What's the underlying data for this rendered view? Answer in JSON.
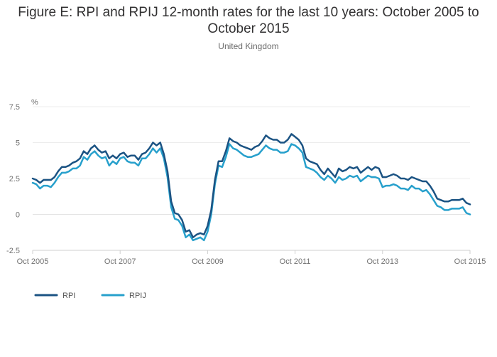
{
  "chart_data": {
    "type": "line",
    "title": "Figure E: RPI and RPIJ 12-month rates for the last 10 years: October 2005 to October 2015",
    "subtitle": "United Kingdom",
    "ylabel": "%",
    "xlabel": "",
    "ylim": [
      -2.5,
      7.5
    ],
    "yticks": [
      {
        "value": 7.5,
        "label": "7.5"
      },
      {
        "value": 5,
        "label": "5"
      },
      {
        "value": 2.5,
        "label": "2.5"
      },
      {
        "value": 0,
        "label": "0"
      },
      {
        "value": -2.5,
        "label": "-2.5"
      }
    ],
    "xticks": [
      {
        "index": 0,
        "label": "Oct 2005"
      },
      {
        "index": 24,
        "label": "Oct 2007"
      },
      {
        "index": 48,
        "label": "Oct 2009"
      },
      {
        "index": 72,
        "label": "Oct 2011"
      },
      {
        "index": 96,
        "label": "Oct 2013"
      },
      {
        "index": 120,
        "label": "Oct 2015"
      }
    ],
    "x_start": "Oct 2005",
    "x_end": "Oct 2015",
    "x_step": "month",
    "grid": true,
    "legend_position": "bottom-left",
    "series": [
      {
        "name": "RPI",
        "color": "#1b5383",
        "values": [
          2.5,
          2.4,
          2.2,
          2.4,
          2.4,
          2.4,
          2.6,
          3.0,
          3.3,
          3.3,
          3.4,
          3.6,
          3.7,
          3.9,
          4.4,
          4.2,
          4.6,
          4.8,
          4.5,
          4.3,
          4.4,
          3.9,
          4.1,
          3.9,
          4.2,
          4.3,
          4.0,
          4.1,
          4.1,
          3.8,
          4.2,
          4.3,
          4.6,
          5.0,
          4.8,
          5.0,
          4.2,
          3.0,
          0.9,
          0.1,
          0.0,
          -0.4,
          -1.2,
          -1.1,
          -1.6,
          -1.4,
          -1.3,
          -1.4,
          -0.8,
          0.3,
          2.4,
          3.7,
          3.7,
          4.4,
          5.3,
          5.1,
          5.0,
          4.8,
          4.7,
          4.6,
          4.5,
          4.7,
          4.8,
          5.1,
          5.5,
          5.3,
          5.2,
          5.2,
          5.0,
          5.0,
          5.2,
          5.6,
          5.4,
          5.2,
          4.8,
          3.9,
          3.7,
          3.6,
          3.5,
          3.1,
          2.8,
          3.2,
          2.9,
          2.6,
          3.2,
          3.0,
          3.1,
          3.3,
          3.2,
          3.3,
          2.9,
          3.1,
          3.3,
          3.1,
          3.3,
          3.2,
          2.6,
          2.6,
          2.7,
          2.8,
          2.7,
          2.5,
          2.5,
          2.4,
          2.6,
          2.5,
          2.4,
          2.3,
          2.3,
          2.0,
          1.6,
          1.1,
          1.0,
          0.9,
          0.9,
          1.0,
          1.0,
          1.0,
          1.1,
          0.8,
          0.7
        ]
      },
      {
        "name": "RPIJ",
        "color": "#27a0cc",
        "values": [
          2.2,
          2.1,
          1.8,
          2.0,
          2.0,
          1.9,
          2.2,
          2.6,
          2.9,
          2.9,
          3.0,
          3.2,
          3.2,
          3.4,
          4.0,
          3.8,
          4.2,
          4.4,
          4.1,
          3.9,
          4.0,
          3.4,
          3.7,
          3.5,
          3.9,
          4.0,
          3.7,
          3.6,
          3.6,
          3.4,
          3.9,
          3.9,
          4.2,
          4.6,
          4.3,
          4.6,
          3.9,
          2.6,
          0.5,
          -0.3,
          -0.4,
          -0.8,
          -1.6,
          -1.4,
          -1.8,
          -1.7,
          -1.6,
          -1.8,
          -1.2,
          0.0,
          2.1,
          3.4,
          3.3,
          4.0,
          4.9,
          4.6,
          4.5,
          4.3,
          4.1,
          4.0,
          4.0,
          4.1,
          4.2,
          4.5,
          4.8,
          4.6,
          4.5,
          4.5,
          4.3,
          4.3,
          4.4,
          4.9,
          4.8,
          4.6,
          4.3,
          3.3,
          3.2,
          3.1,
          2.9,
          2.6,
          2.4,
          2.7,
          2.5,
          2.2,
          2.6,
          2.4,
          2.5,
          2.7,
          2.6,
          2.7,
          2.3,
          2.5,
          2.7,
          2.6,
          2.6,
          2.5,
          1.9,
          2.0,
          2.0,
          2.1,
          2.0,
          1.8,
          1.8,
          1.7,
          2.0,
          1.8,
          1.8,
          1.6,
          1.7,
          1.4,
          1.0,
          0.6,
          0.5,
          0.3,
          0.3,
          0.4,
          0.4,
          0.4,
          0.5,
          0.1,
          0.0
        ]
      }
    ]
  }
}
